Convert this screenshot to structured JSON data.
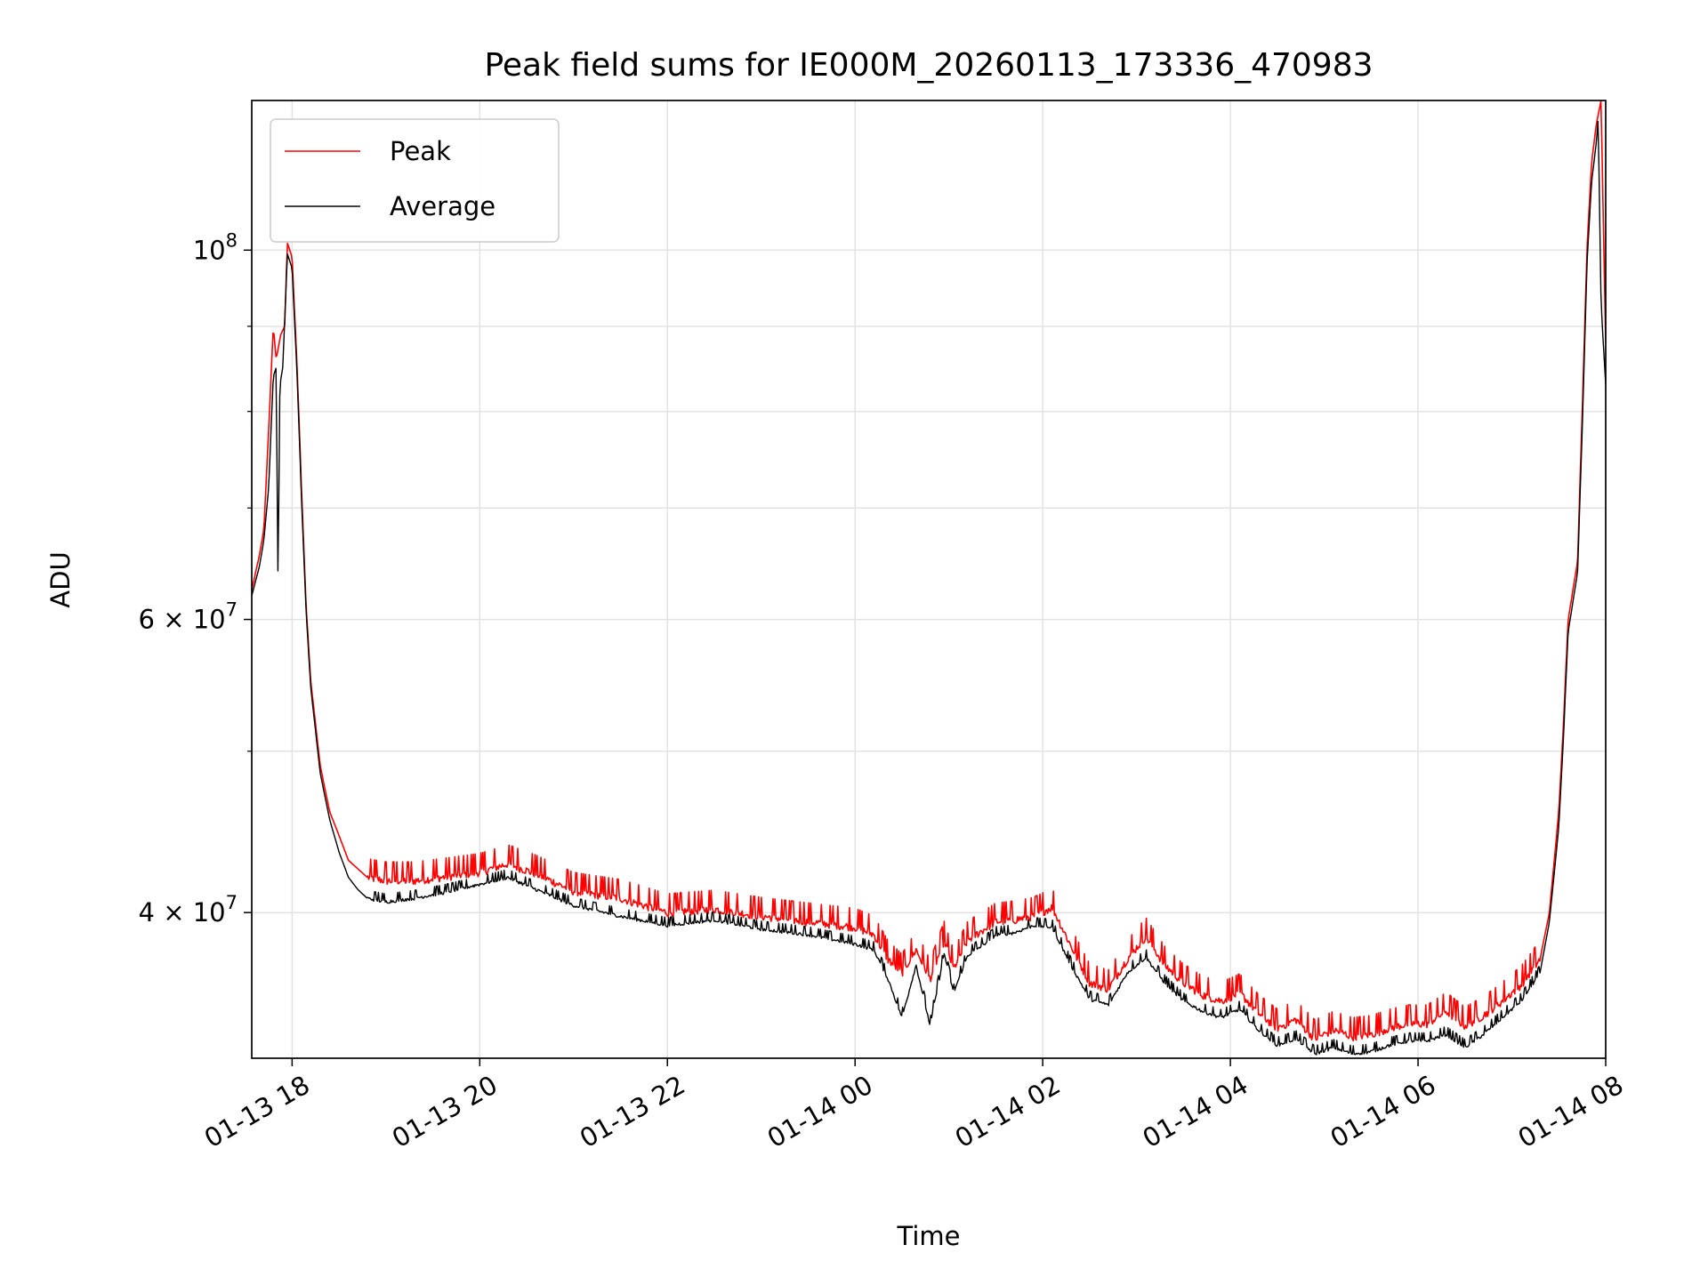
{
  "chart_data": {
    "type": "line",
    "title": "Peak field sums for IE000M_20260113_173336_470983",
    "xlabel": "Time",
    "ylabel": "ADU",
    "yscale": "log",
    "ylim": [
      32700000,
      123000000
    ],
    "xlim_hours": [
      -0.43,
      14.0
    ],
    "x_origin": "2026-01-13 18:00",
    "x_unit": "hours since x_origin",
    "grid": true,
    "legend_position": "upper-left",
    "x_ticks": [
      {
        "hour": 0,
        "label": "01-13 18"
      },
      {
        "hour": 2,
        "label": "01-13 20"
      },
      {
        "hour": 4,
        "label": "01-13 22"
      },
      {
        "hour": 6,
        "label": "01-14 00"
      },
      {
        "hour": 8,
        "label": "01-14 02"
      },
      {
        "hour": 10,
        "label": "01-14 04"
      },
      {
        "hour": 12,
        "label": "01-14 06"
      },
      {
        "hour": 14,
        "label": "01-14 08"
      }
    ],
    "y_major_ticks": [
      {
        "value": 40000000,
        "mantissa": "4",
        "exp": "7"
      },
      {
        "value": 60000000,
        "mantissa": "6",
        "exp": "7"
      },
      {
        "value": 100000000,
        "mantissa": "",
        "exp": "8"
      }
    ],
    "y_minor_ticks": [
      50000000,
      70000000,
      80000000,
      90000000
    ],
    "series": [
      {
        "name": "Peak",
        "color": "#ff0000",
        "x": [
          -0.43,
          -0.35,
          -0.3,
          -0.25,
          -0.2,
          -0.17,
          -0.12,
          -0.08,
          -0.05,
          0.0,
          0.05,
          0.1,
          0.15,
          0.2,
          0.3,
          0.4,
          0.5,
          0.6,
          0.7,
          0.8,
          1.0,
          1.3,
          1.6,
          2.0,
          2.3,
          2.6,
          3.0,
          3.5,
          4.0,
          4.5,
          5.0,
          5.5,
          6.0,
          6.2,
          6.35,
          6.5,
          6.65,
          6.8,
          6.95,
          7.05,
          7.2,
          7.35,
          7.5,
          7.7,
          7.9,
          8.1,
          8.3,
          8.5,
          8.7,
          8.9,
          9.1,
          9.3,
          9.5,
          9.7,
          9.9,
          10.1,
          10.3,
          10.5,
          10.7,
          10.9,
          11.1,
          11.3,
          11.5,
          11.7,
          11.9,
          12.1,
          12.3,
          12.5,
          12.7,
          12.9,
          13.1,
          13.3,
          13.4,
          13.5,
          13.55,
          13.6,
          13.7,
          13.75,
          13.8,
          13.85,
          13.9,
          13.95,
          14.0
        ],
        "values": [
          62500000,
          65500000,
          68000000,
          78000000,
          90000000,
          86000000,
          89000000,
          90000000,
          101000000,
          99000000,
          86000000,
          72000000,
          61000000,
          55000000,
          49000000,
          46000000,
          44500000,
          43000000,
          42500000,
          42000000,
          41800000,
          41800000,
          42000000,
          42300000,
          42800000,
          42200000,
          41200000,
          40800000,
          40000000,
          40200000,
          39800000,
          39500000,
          39200000,
          38800000,
          37500000,
          36800000,
          38000000,
          36500000,
          38500000,
          37000000,
          38500000,
          39000000,
          39500000,
          39600000,
          39800000,
          40300000,
          38200000,
          36300000,
          36000000,
          37500000,
          38700000,
          37200000,
          36300000,
          35700000,
          35400000,
          35800000,
          34800000,
          34100000,
          34500000,
          33600000,
          34000000,
          33700000,
          33800000,
          34100000,
          34300000,
          34300000,
          34900000,
          34200000,
          34700000,
          35400000,
          36200000,
          37500000,
          40000000,
          46000000,
          52000000,
          60000000,
          65000000,
          80000000,
          100000000,
          113000000,
          119000000,
          123000000,
          88000000
        ]
      },
      {
        "name": "Average",
        "color": "#000000",
        "x": [
          -0.43,
          -0.35,
          -0.3,
          -0.25,
          -0.2,
          -0.17,
          -0.15,
          -0.13,
          -0.1,
          -0.05,
          0.0,
          0.05,
          0.1,
          0.15,
          0.2,
          0.3,
          0.4,
          0.5,
          0.6,
          0.7,
          0.8,
          1.0,
          1.3,
          1.6,
          2.0,
          2.3,
          2.6,
          3.0,
          3.5,
          4.0,
          4.5,
          5.0,
          5.5,
          6.0,
          6.2,
          6.35,
          6.5,
          6.65,
          6.8,
          6.95,
          7.05,
          7.2,
          7.35,
          7.5,
          7.7,
          7.9,
          8.1,
          8.3,
          8.5,
          8.7,
          8.9,
          9.1,
          9.3,
          9.5,
          9.7,
          9.9,
          10.1,
          10.3,
          10.5,
          10.7,
          10.9,
          11.1,
          11.3,
          11.5,
          11.7,
          11.9,
          12.1,
          12.3,
          12.5,
          12.7,
          12.9,
          13.1,
          13.3,
          13.4,
          13.5,
          13.55,
          13.6,
          13.7,
          13.75,
          13.8,
          13.85,
          13.9,
          13.92,
          13.95,
          14.0
        ],
        "values": [
          62000000,
          64500000,
          67000000,
          72000000,
          84000000,
          85000000,
          62500000,
          83000000,
          85000000,
          99500000,
          97500000,
          85000000,
          71000000,
          60500000,
          54500000,
          48500000,
          45500000,
          43500000,
          42000000,
          41300000,
          40800000,
          40600000,
          40800000,
          41100000,
          41600000,
          42000000,
          41300000,
          40400000,
          39800000,
          39300000,
          39600000,
          39100000,
          38800000,
          38300000,
          38000000,
          36500000,
          34600000,
          37200000,
          34200000,
          37800000,
          35800000,
          37700000,
          38200000,
          38800000,
          38900000,
          39300000,
          39200000,
          37200000,
          35500000,
          35200000,
          36800000,
          37600000,
          36300000,
          35400000,
          34900000,
          34600000,
          35000000,
          34000000,
          33300000,
          33600000,
          32900000,
          33200000,
          32900000,
          33000000,
          33300000,
          33500000,
          33500000,
          33800000,
          33200000,
          33800000,
          34600000,
          35400000,
          36800000,
          39500000,
          45000000,
          51000000,
          59000000,
          64000000,
          78000000,
          98000000,
          110000000,
          116000000,
          120000000,
          93000000,
          83000000
        ]
      }
    ]
  }
}
